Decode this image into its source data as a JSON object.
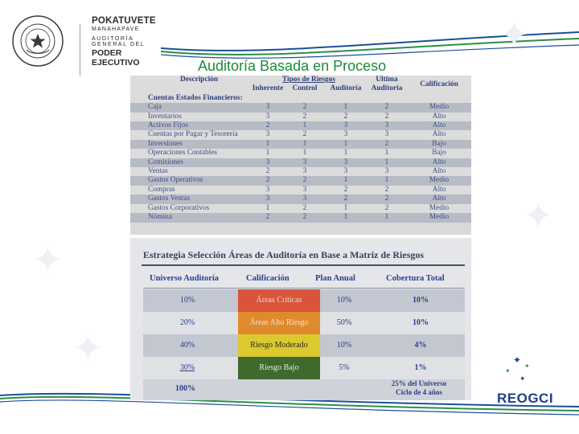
{
  "header": {
    "org_line1": "POKATUVETE",
    "org_line2": "MANAHAPAVE",
    "org_line3": "AUDITORÍA GENERAL DEL",
    "org_line4": "PODER EJECUTIVO",
    "seal_text": "REPÚBLICA DEL PARAGUAY"
  },
  "slide": {
    "title": "Auditoría Basada en Proceso"
  },
  "risk_table": {
    "col_description": "Descripción",
    "col_risk_types": "Tipos de Riesgos",
    "col_inherent": "Inherente",
    "col_control": "Control",
    "col_audit": "Auditoría",
    "col_last_line1": "Ultima",
    "col_last_line2": "Auditoria",
    "col_rating": "Calificación",
    "section_label": "Cuentas Estados Financieros:",
    "rows": [
      {
        "desc": "Caja",
        "inh": "3",
        "ctl": "2",
        "aud": "1",
        "last": "2",
        "rating": "Medio"
      },
      {
        "desc": "Inventarios",
        "inh": "3",
        "ctl": "2",
        "aud": "2",
        "last": "2",
        "rating": "Alto"
      },
      {
        "desc": "Activos Fijos",
        "inh": "2",
        "ctl": "1",
        "aud": "3",
        "last": "3",
        "rating": "Alto"
      },
      {
        "desc": "Cuentas por Pagar y Tesorería",
        "inh": "3",
        "ctl": "2",
        "aud": "3",
        "last": "3",
        "rating": "Alto"
      },
      {
        "desc": "Inversiones",
        "inh": "1",
        "ctl": "1",
        "aud": "1",
        "last": "2",
        "rating": "Bajo"
      },
      {
        "desc": "Operaciones Contables",
        "inh": "1",
        "ctl": "1",
        "aud": "1",
        "last": "1",
        "rating": "Bajo"
      },
      {
        "desc": "Comisiones",
        "inh": "3",
        "ctl": "3",
        "aud": "3",
        "last": "1",
        "rating": "Alto"
      },
      {
        "desc": "Ventas",
        "inh": "2",
        "ctl": "3",
        "aud": "3",
        "last": "3",
        "rating": "Alto"
      },
      {
        "desc": "Gastos Operativos",
        "inh": "2",
        "ctl": "2",
        "aud": "1",
        "last": "1",
        "rating": "Medio"
      },
      {
        "desc": "Compras",
        "inh": "3",
        "ctl": "3",
        "aud": "2",
        "last": "2",
        "rating": "Alto"
      },
      {
        "desc": "Gastos Ventas",
        "inh": "3",
        "ctl": "3",
        "aud": "2",
        "last": "2",
        "rating": "Alto"
      },
      {
        "desc": "Gastos Corporativos",
        "inh": "1",
        "ctl": "2",
        "aud": "1",
        "last": "2",
        "rating": "Medio"
      },
      {
        "desc": "Nómina",
        "inh": "2",
        "ctl": "2",
        "aud": "1",
        "last": "1",
        "rating": "Medio"
      }
    ]
  },
  "strategy_table": {
    "title": "Estrategia Selección Áreas de Auditoría en Base a Matriz de Riesgos",
    "col_universe": "Universo Auditoría",
    "col_rating": "Calificación",
    "col_plan": "Plan Anual",
    "col_coverage": "Cobertura Total",
    "rows": [
      {
        "universe": "10%",
        "rating": "Áreas Críticas",
        "plan": "10%",
        "coverage": "10%",
        "color": "#d9543a",
        "text_color": "#f3d6cc"
      },
      {
        "universe": "20%",
        "rating": "Áreas Alto Riesgo",
        "plan": "50%",
        "coverage": "10%",
        "color": "#e08a2e",
        "text_color": "#f6e2c2"
      },
      {
        "universe": "40%",
        "rating": "Riesgo Moderado",
        "plan": "10%",
        "coverage": "4%",
        "color": "#dbc92e",
        "text_color": "#2a2a2a"
      },
      {
        "universe": "30%",
        "rating": "Riesgo Bajo",
        "plan": "5%",
        "coverage": "1%",
        "color": "#3f6a2e",
        "text_color": "#e3ead8"
      }
    ],
    "footer_universe": "100%",
    "footer_coverage_line1": "25% del Universo",
    "footer_coverage_line2": "Ciclo de 4 años"
  },
  "footer": {
    "logo_text": "REOGCI"
  }
}
